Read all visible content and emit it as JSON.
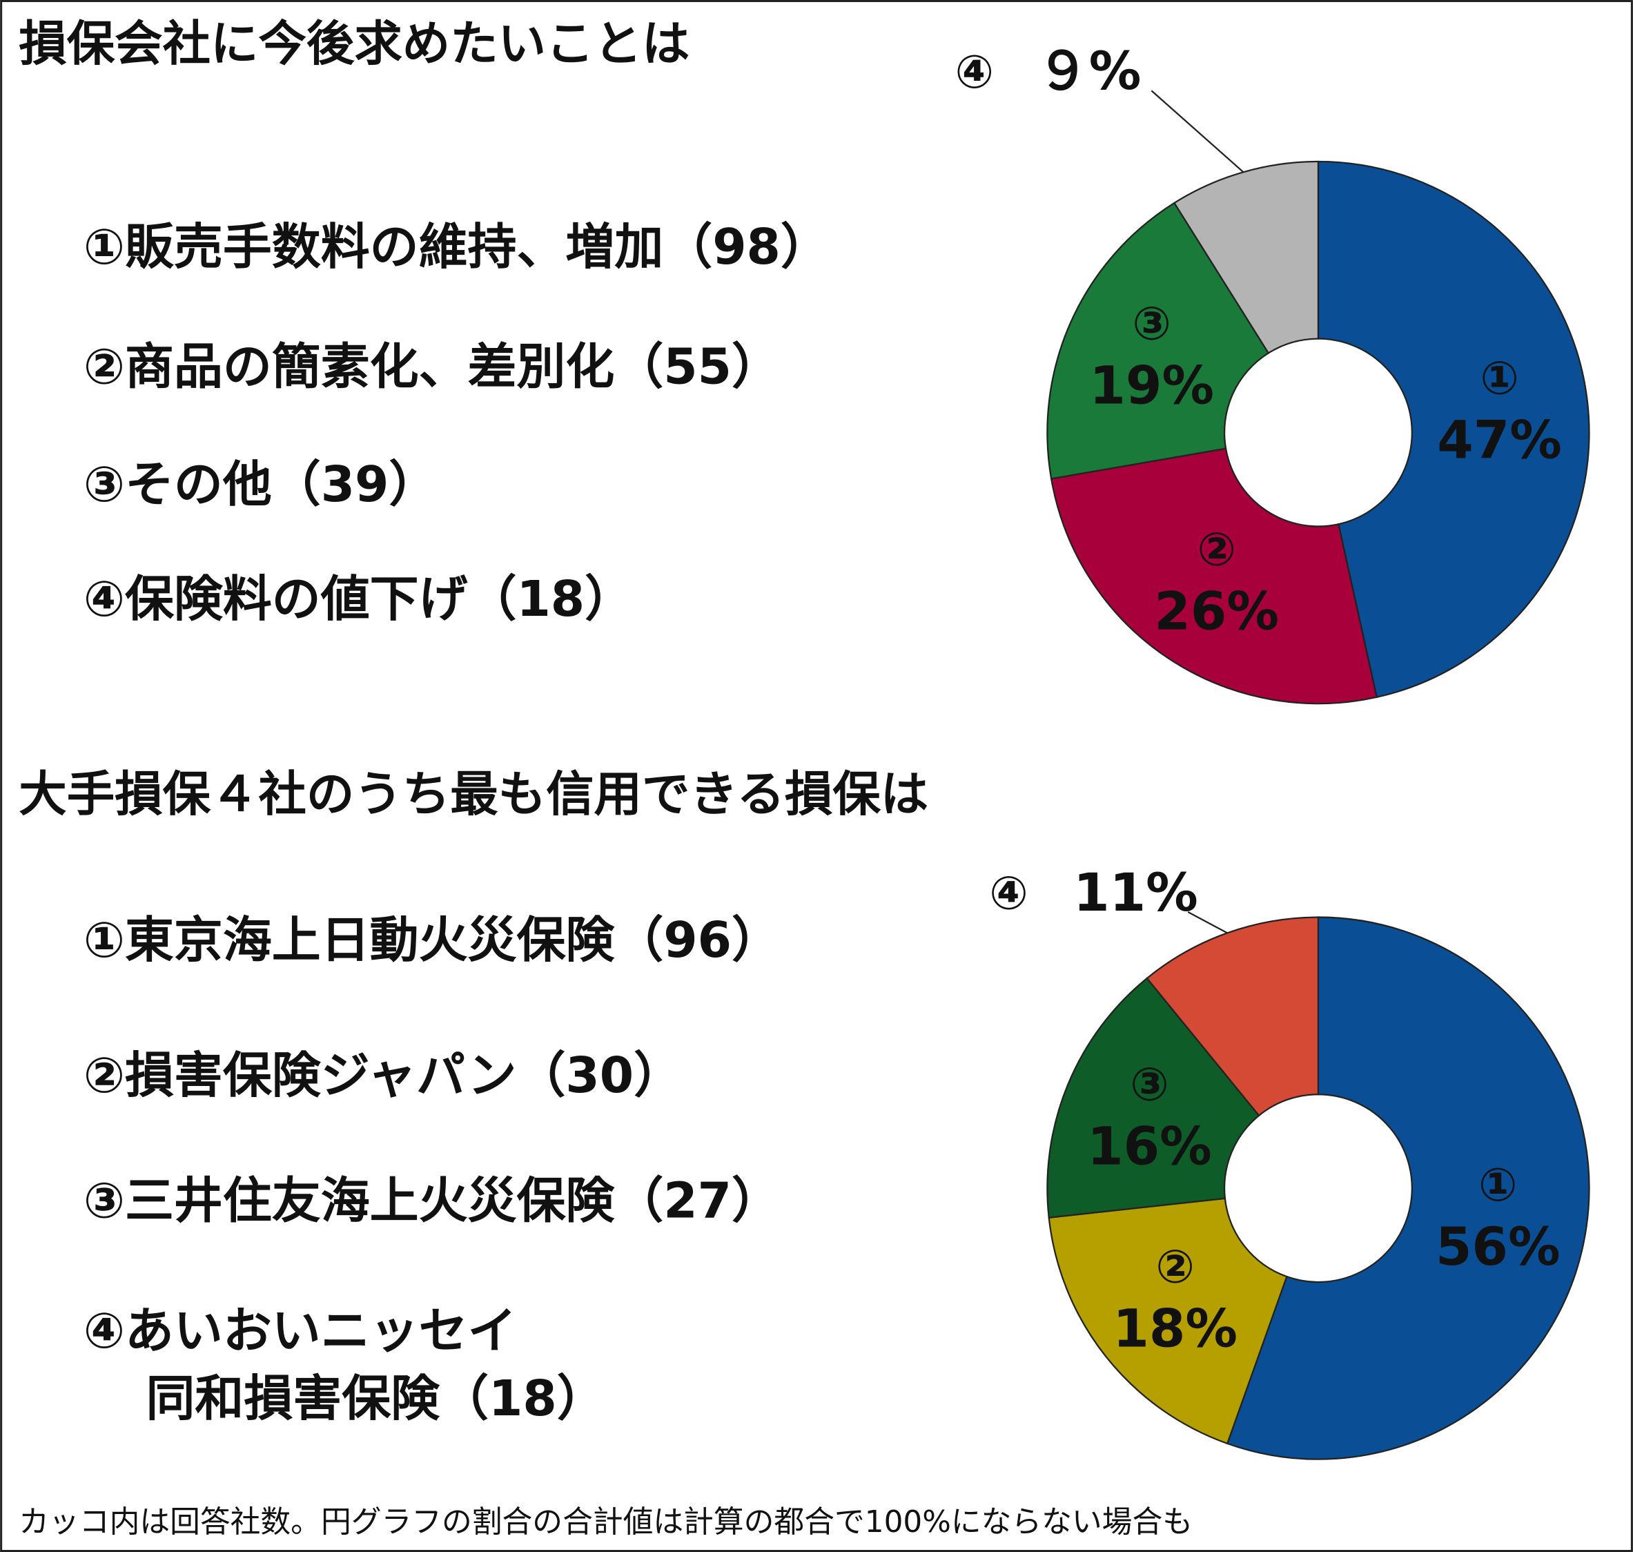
{
  "chart_data": [
    {
      "type": "donut",
      "title": "損保会社に今後求めたいことは",
      "legend": [
        [
          "①販売手数料の維持、増加（98）"
        ],
        [
          "②商品の簡素化、差別化（55）"
        ],
        [
          "③その他（39）"
        ],
        [
          "④保険料の値下げ（18）"
        ]
      ],
      "markers": [
        "①",
        "②",
        "③",
        "④"
      ],
      "values": [
        47,
        26,
        19,
        9
      ],
      "value_labels": [
        "47%",
        "26%",
        "19%",
        "９%"
      ],
      "colors": [
        "#0a4f95",
        "#a8003a",
        "#1a7a3a",
        "#b4b4b4"
      ]
    },
    {
      "type": "donut",
      "title": "大手損保４社のうち最も信用できる損保は",
      "legend": [
        [
          "①東京海上日動火災保険（96）"
        ],
        [
          "②損害保険ジャパン（30）"
        ],
        [
          "③三井住友海上火災保険（27）"
        ],
        [
          "④あいおいニッセイ",
          "同和損害保険（18）"
        ]
      ],
      "markers": [
        "①",
        "②",
        "③",
        "④"
      ],
      "values": [
        56,
        18,
        16,
        11
      ],
      "value_labels": [
        "56%",
        "18%",
        "16%",
        "11%"
      ],
      "colors": [
        "#0a4f95",
        "#b5a000",
        "#0e5c28",
        "#d44a35"
      ]
    }
  ],
  "note": "カッコ内は回答社数。円グラフの割合の合計値は計算の都合で100%にならない場合も"
}
